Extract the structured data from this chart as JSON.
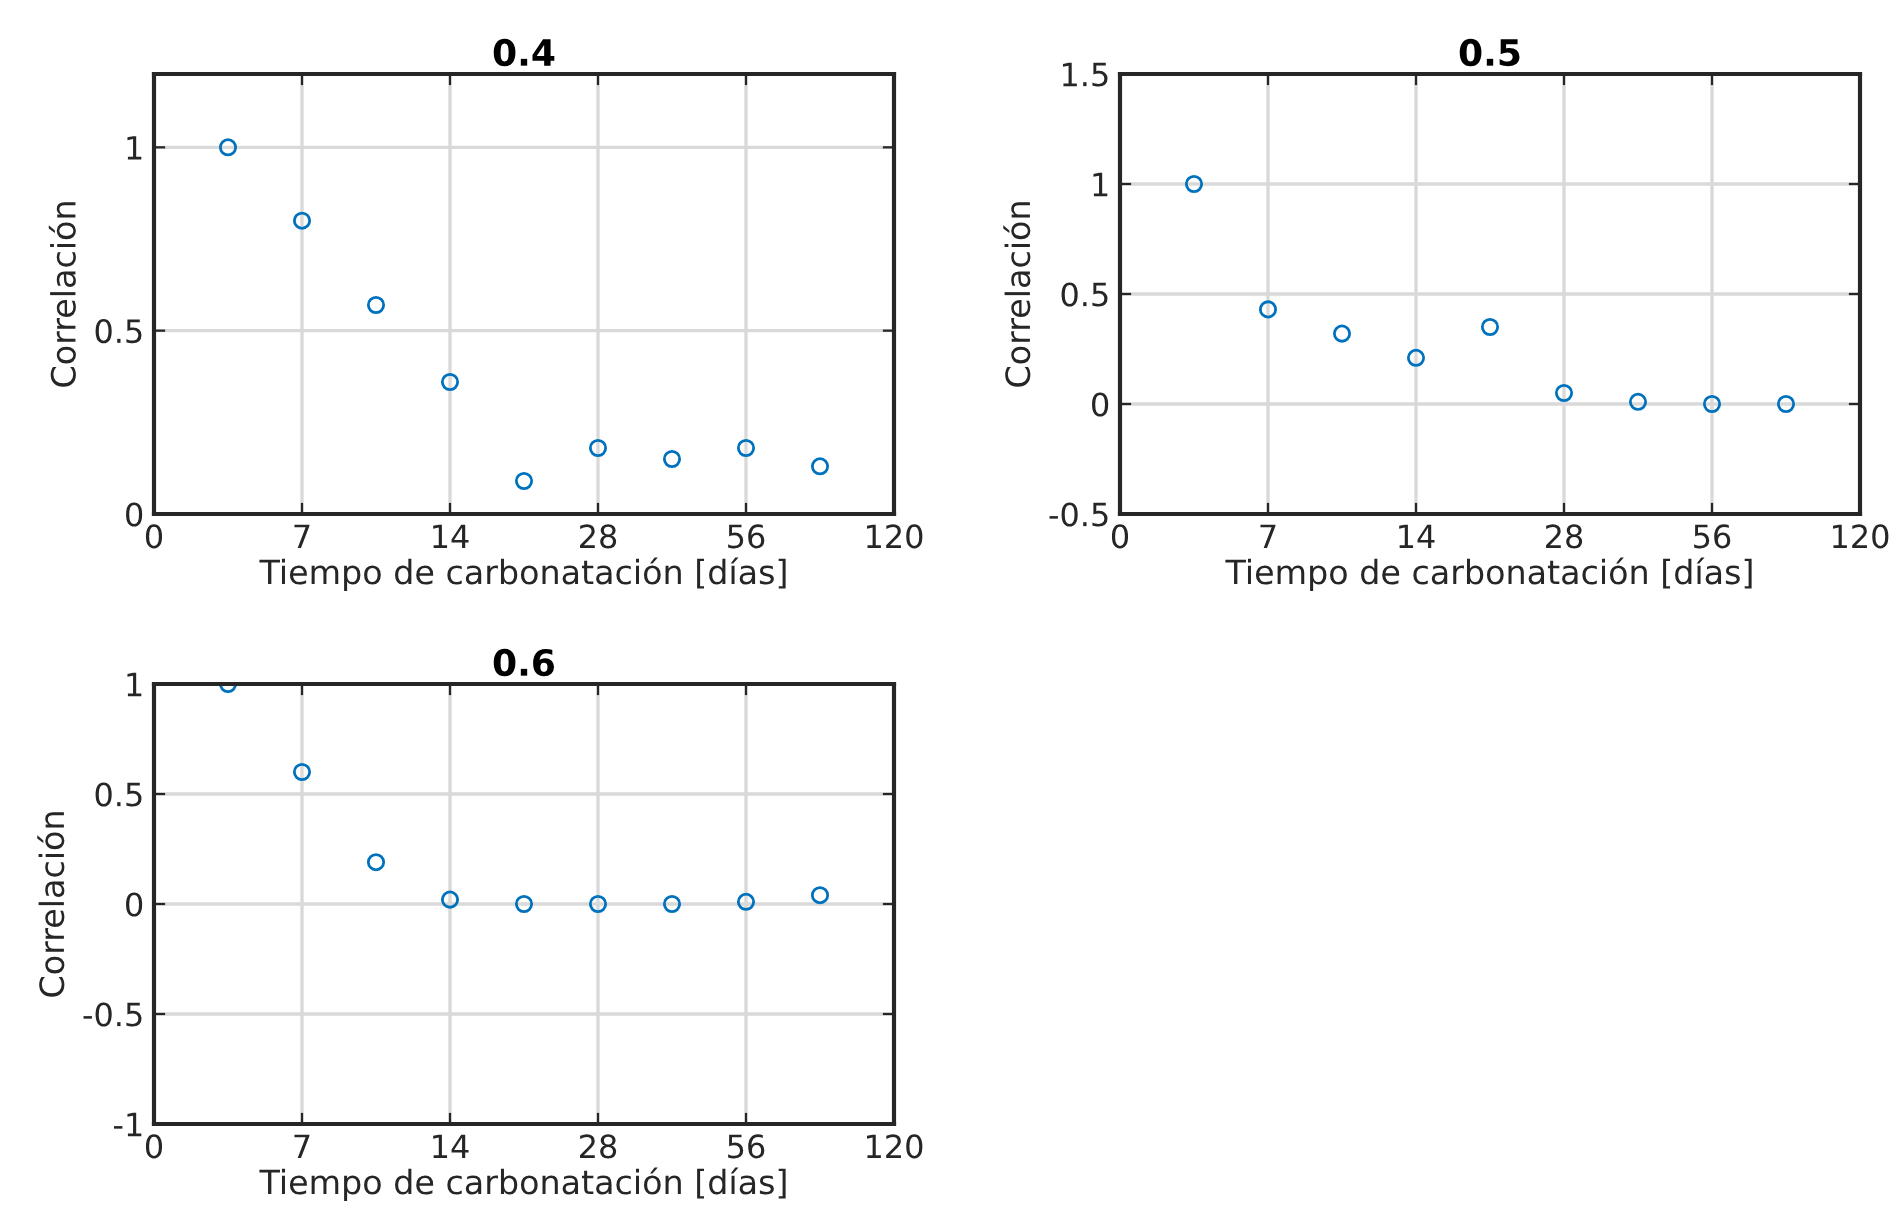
{
  "chart_data": [
    {
      "type": "scatter",
      "title": "0.4",
      "xlabel": "Tiempo de carbonatación [días]",
      "ylabel": "Correlación",
      "categories": [
        "0",
        null,
        "7",
        null,
        "14",
        null,
        "28",
        null,
        "56",
        null,
        "120"
      ],
      "series": [
        {
          "color": "#0072bd",
          "values": [
            null,
            1,
            0.8,
            0.57,
            0.36,
            0.09,
            0.18,
            0.15,
            0.18,
            0.13,
            null
          ]
        }
      ],
      "ylim": [
        0,
        1.2
      ],
      "yticks": [
        0,
        0.5,
        1
      ],
      "grid": true,
      "marker": "circle"
    },
    {
      "type": "scatter",
      "title": "0.5",
      "xlabel": "Tiempo de carbonatación [días]",
      "ylabel": "Correlación",
      "categories": [
        "0",
        null,
        "7",
        null,
        "14",
        null,
        "28",
        null,
        "56",
        null,
        "120"
      ],
      "series": [
        {
          "color": "#0072bd",
          "values": [
            null,
            1,
            0.43,
            0.32,
            0.21,
            0.35,
            0.05,
            0.01,
            0,
            0,
            null
          ]
        }
      ],
      "ylim": [
        -0.5,
        1.5
      ],
      "yticks": [
        -0.5,
        0,
        0.5,
        1,
        1.5
      ],
      "grid": true,
      "marker": "circle"
    },
    {
      "type": "scatter",
      "title": "0.6",
      "xlabel": "Tiempo de carbonatación [días]",
      "ylabel": "Correlación",
      "categories": [
        "0",
        null,
        "7",
        null,
        "14",
        null,
        "28",
        null,
        "56",
        null,
        "120"
      ],
      "series": [
        {
          "color": "#0072bd",
          "values": [
            null,
            1,
            0.6,
            0.19,
            0.02,
            0,
            0,
            0,
            0.01,
            0.04,
            null
          ]
        }
      ],
      "ylim": [
        -1,
        1
      ],
      "yticks": [
        -1,
        -0.5,
        0,
        0.5,
        1
      ],
      "grid": true,
      "marker": "circle"
    }
  ]
}
